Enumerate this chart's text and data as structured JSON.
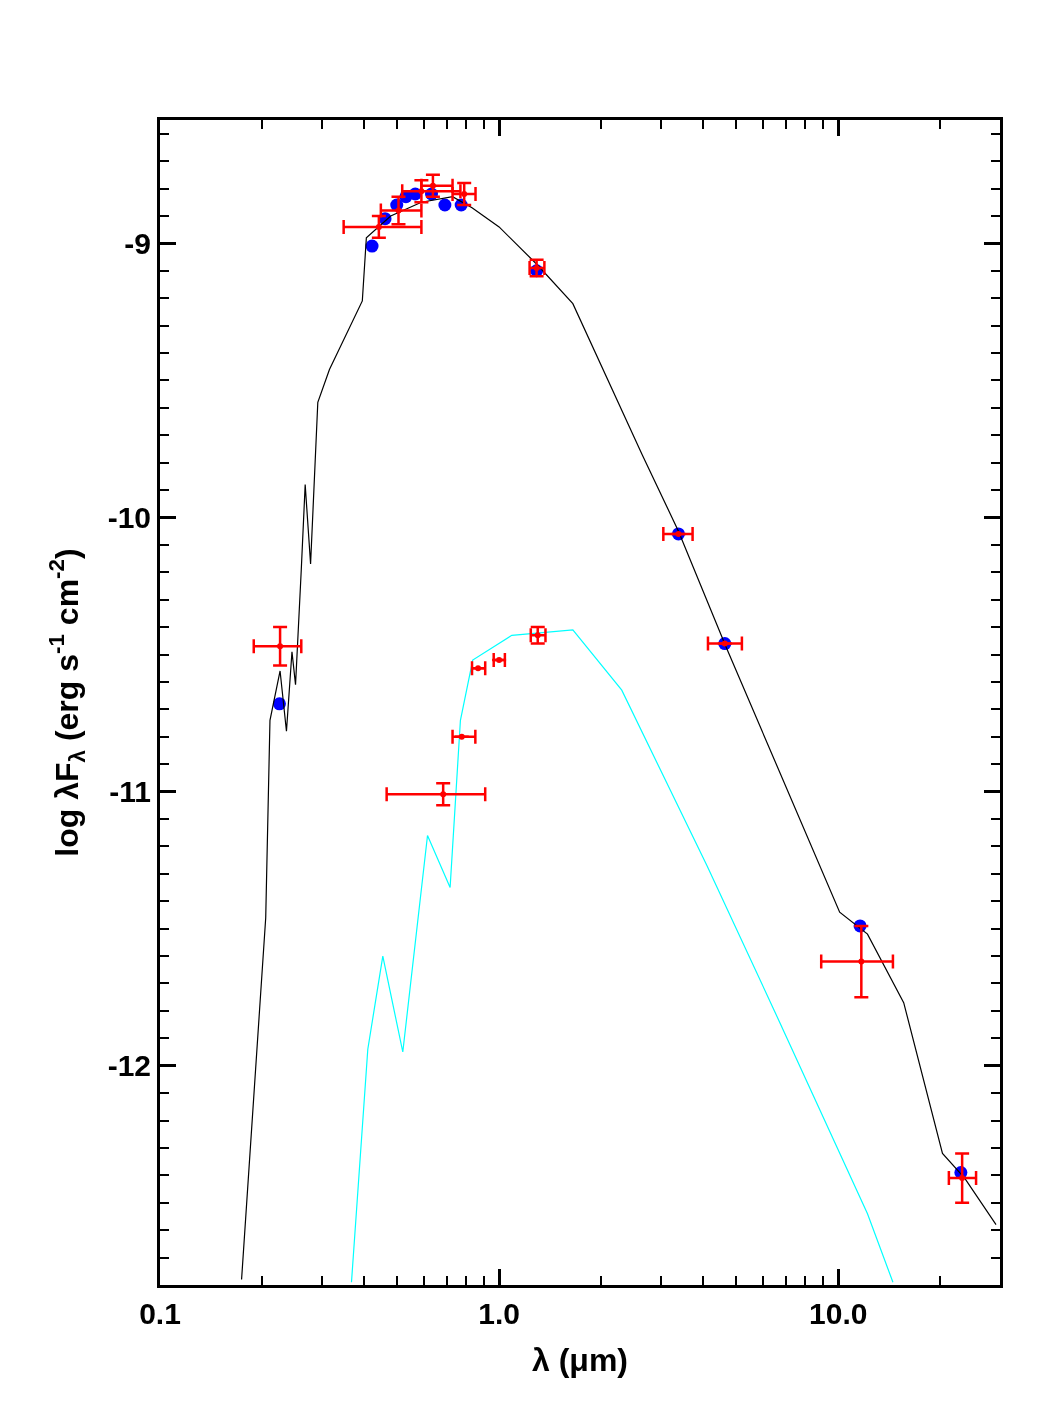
{
  "chart_data": {
    "type": "line",
    "xlabel": "λ (μm)",
    "ylabel": "log λF$_{λ}$ (erg s$^{-1}$ cm$^{-2}$)",
    "log": "x",
    "xlim": [
      0.1,
      30
    ],
    "xticks": [
      0.1,
      {
        "value": 1,
        "label": "1.0"
      },
      {
        "value": 10,
        "label": "10.0"
      }
    ],
    "ylim": [
      -12.8,
      -8.55
    ],
    "yticks": [
      -12,
      -11,
      -10,
      -9
    ],
    "series": [
      {
        "color": "#000000",
        "marker": "none",
        "x": [
          0.174,
          0.205,
          0.211,
          0.226,
          0.236,
          0.245,
          0.251,
          0.261,
          0.268,
          0.278,
          0.292,
          0.316,
          0.395,
          0.406,
          0.479,
          0.59,
          0.729,
          0.832,
          1.0,
          1.3,
          1.65,
          2.64,
          3.38,
          4.66,
          10.1,
          12.2,
          15.6,
          20.3,
          23.6,
          29.2
        ],
        "values": [
          -12.78,
          -11.46,
          -10.74,
          -10.56,
          -10.78,
          -10.49,
          -10.61,
          -10.19,
          -9.88,
          -10.17,
          -9.58,
          -9.46,
          -9.21,
          -8.98,
          -8.9,
          -8.85,
          -8.83,
          -8.87,
          -8.94,
          -9.08,
          -9.22,
          -9.77,
          -10.05,
          -10.47,
          -11.44,
          -11.52,
          -11.77,
          -12.32,
          -12.41,
          -12.58
        ]
      },
      {
        "color": "#00ffff",
        "marker": "none",
        "x": [
          0.367,
          0.41,
          0.454,
          0.52,
          0.615,
          0.717,
          0.769,
          0.836,
          1.09,
          1.65,
          2.3,
          4.1,
          6.43,
          12.2,
          14.5
        ],
        "values": [
          -12.79,
          -11.94,
          -11.6,
          -11.95,
          -11.16,
          -11.35,
          -10.74,
          -10.52,
          -10.43,
          -10.41,
          -10.63,
          -11.27,
          -11.79,
          -12.54,
          -12.79
        ]
      },
      {
        "type": "scatter",
        "color": "#0000ff",
        "marker": "circle",
        "x": [
          0.225,
          0.422,
          0.461,
          0.499,
          0.531,
          0.566,
          0.632,
          0.692,
          0.773,
          1.29,
          3.38,
          4.63,
          11.6,
          23.0
        ],
        "values": [
          -10.68,
          -9.01,
          -8.91,
          -8.86,
          -8.83,
          -8.82,
          -8.82,
          -8.86,
          -8.86,
          -9.1,
          -10.06,
          -10.46,
          -11.49,
          -12.39
        ]
      },
      {
        "type": "scatter",
        "color": "#ff0000",
        "marker": "none",
        "x": [
          0.226,
          0.442,
          0.505,
          0.59,
          0.638,
          0.789,
          1.29,
          3.38,
          4.63,
          11.7,
          23.2,
          0.684,
          0.776,
          0.867,
          1.0,
          1.3
        ],
        "values": [
          -10.47,
          -8.94,
          -8.88,
          -8.81,
          -8.79,
          -8.82,
          -9.09,
          -10.06,
          -10.46,
          -11.62,
          -12.41,
          -11.01,
          -10.8,
          -10.55,
          -10.52,
          -10.43
        ],
        "xerrors": [
          [
            0.189,
            0.261
          ],
          [
            0.348,
            0.59
          ],
          [
            0.448,
            0.59
          ],
          [
            0.518,
            0.769
          ],
          [
            0.59,
            0.729
          ],
          [
            0.729,
            0.852
          ],
          [
            1.23,
            1.36
          ],
          [
            3.05,
            3.72
          ],
          [
            4.13,
            5.2
          ],
          [
            8.91,
            14.5
          ],
          [
            21.2,
            25.5
          ],
          [
            0.466,
            0.91
          ],
          [
            0.729,
            0.851
          ],
          [
            0.832,
            0.91
          ],
          [
            0.964,
            1.04
          ],
          [
            1.24,
            1.37
          ]
        ],
        "errors": [
          0.07,
          0.04,
          0.05,
          0.04,
          0.04,
          0.04,
          0.03,
          null,
          null,
          0.13,
          0.09,
          0.04,
          null,
          null,
          null,
          0.03
        ]
      }
    ]
  }
}
